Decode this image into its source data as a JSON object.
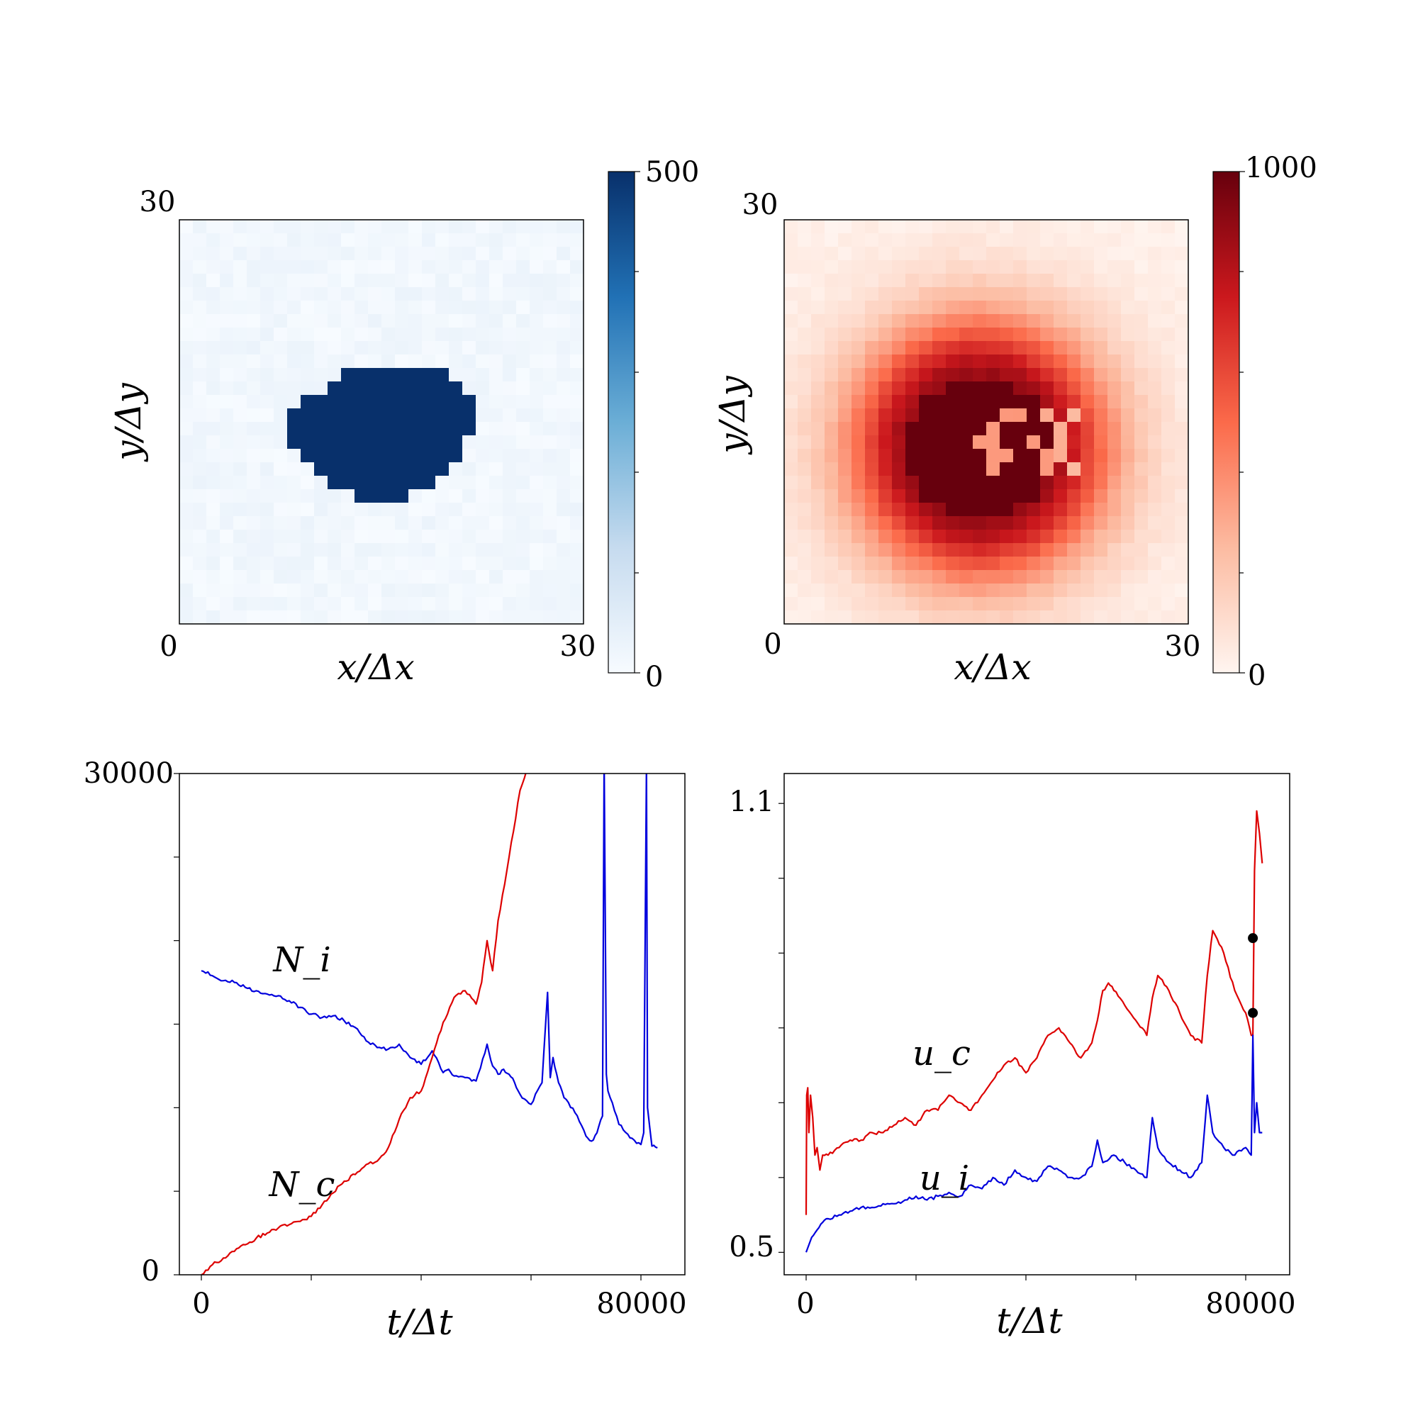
{
  "chart_data": [
    {
      "id": "heatmap_blue",
      "type": "heatmap",
      "xlabel": "x/Δx",
      "ylabel": "y/Δy",
      "xlim": [
        0,
        30
      ],
      "ylim": [
        0,
        30
      ],
      "xticklabels": [
        "0",
        "30"
      ],
      "yticklabels": [
        "30"
      ],
      "colormap": "Blues",
      "colorbar": {
        "range": [
          0,
          500
        ],
        "ticklabels": [
          "0",
          "500"
        ]
      },
      "grid_size": 30,
      "cells": [
        [
          12,
          11,
          500
        ],
        [
          13,
          11,
          500
        ],
        [
          14,
          11,
          500
        ],
        [
          15,
          11,
          500
        ],
        [
          16,
          11,
          500
        ],
        [
          17,
          11,
          500
        ],
        [
          18,
          11,
          500
        ],
        [
          19,
          11,
          500
        ],
        [
          11,
          12,
          500
        ],
        [
          12,
          12,
          500
        ],
        [
          13,
          12,
          500
        ],
        [
          14,
          12,
          500
        ],
        [
          15,
          12,
          500
        ],
        [
          16,
          12,
          500
        ],
        [
          17,
          12,
          500
        ],
        [
          18,
          12,
          500
        ],
        [
          19,
          12,
          500
        ],
        [
          20,
          12,
          500
        ],
        [
          9,
          13,
          500
        ],
        [
          10,
          13,
          500
        ],
        [
          11,
          13,
          500
        ],
        [
          12,
          13,
          500
        ],
        [
          13,
          13,
          500
        ],
        [
          14,
          13,
          500
        ],
        [
          15,
          13,
          500
        ],
        [
          16,
          13,
          500
        ],
        [
          17,
          13,
          500
        ],
        [
          18,
          13,
          500
        ],
        [
          19,
          13,
          500
        ],
        [
          20,
          13,
          500
        ],
        [
          21,
          13,
          500
        ],
        [
          8,
          14,
          500
        ],
        [
          9,
          14,
          500
        ],
        [
          10,
          14,
          500
        ],
        [
          11,
          14,
          500
        ],
        [
          12,
          14,
          500
        ],
        [
          13,
          14,
          500
        ],
        [
          14,
          14,
          500
        ],
        [
          15,
          14,
          500
        ],
        [
          16,
          14,
          500
        ],
        [
          17,
          14,
          500
        ],
        [
          18,
          14,
          500
        ],
        [
          19,
          14,
          500
        ],
        [
          20,
          14,
          500
        ],
        [
          21,
          14,
          500
        ],
        [
          8,
          15,
          500
        ],
        [
          9,
          15,
          500
        ],
        [
          10,
          15,
          500
        ],
        [
          11,
          15,
          500
        ],
        [
          12,
          15,
          500
        ],
        [
          13,
          15,
          500
        ],
        [
          14,
          15,
          500
        ],
        [
          15,
          15,
          500
        ],
        [
          16,
          15,
          500
        ],
        [
          17,
          15,
          500
        ],
        [
          18,
          15,
          500
        ],
        [
          19,
          15,
          500
        ],
        [
          20,
          15,
          500
        ],
        [
          21,
          15,
          500
        ],
        [
          8,
          16,
          500
        ],
        [
          9,
          16,
          500
        ],
        [
          10,
          16,
          500
        ],
        [
          11,
          16,
          500
        ],
        [
          12,
          16,
          500
        ],
        [
          13,
          16,
          500
        ],
        [
          14,
          16,
          500
        ],
        [
          15,
          16,
          500
        ],
        [
          16,
          16,
          500
        ],
        [
          17,
          16,
          500
        ],
        [
          18,
          16,
          500
        ],
        [
          19,
          16,
          500
        ],
        [
          20,
          16,
          500
        ],
        [
          9,
          17,
          500
        ],
        [
          10,
          17,
          500
        ],
        [
          11,
          17,
          500
        ],
        [
          12,
          17,
          500
        ],
        [
          13,
          17,
          500
        ],
        [
          14,
          17,
          500
        ],
        [
          15,
          17,
          500
        ],
        [
          16,
          17,
          500
        ],
        [
          17,
          17,
          500
        ],
        [
          18,
          17,
          500
        ],
        [
          19,
          17,
          500
        ],
        [
          20,
          17,
          500
        ],
        [
          10,
          18,
          500
        ],
        [
          11,
          18,
          500
        ],
        [
          12,
          18,
          500
        ],
        [
          13,
          18,
          500
        ],
        [
          14,
          18,
          500
        ],
        [
          15,
          18,
          500
        ],
        [
          16,
          18,
          500
        ],
        [
          17,
          18,
          500
        ],
        [
          18,
          18,
          500
        ],
        [
          19,
          18,
          500
        ],
        [
          11,
          19,
          500
        ],
        [
          12,
          19,
          500
        ],
        [
          13,
          19,
          500
        ],
        [
          14,
          19,
          500
        ],
        [
          15,
          19,
          500
        ],
        [
          16,
          19,
          500
        ],
        [
          17,
          19,
          500
        ],
        [
          18,
          19,
          500
        ],
        [
          13,
          20,
          500
        ],
        [
          14,
          20,
          500
        ],
        [
          15,
          20,
          500
        ],
        [
          16,
          20,
          500
        ]
      ]
    },
    {
      "id": "heatmap_red",
      "type": "heatmap",
      "xlabel": "x/Δx",
      "ylabel": "y/Δy",
      "xlim": [
        0,
        30
      ],
      "ylim": [
        0,
        30
      ],
      "xticklabels": [
        "0",
        "30"
      ],
      "yticklabels": [
        "30"
      ],
      "colormap": "Reds",
      "colorbar": {
        "range": [
          0,
          1000
        ],
        "ticklabels": [
          "0",
          "1000"
        ]
      },
      "grid_size": 30,
      "blob": {
        "center": [
          14.5,
          17
        ],
        "core_radius": 5.4,
        "falloff": 5.0,
        "peak": 1000
      }
    },
    {
      "id": "counts",
      "type": "line",
      "xlabel": "t/Δt",
      "ylabel": "",
      "xlim": [
        -4000,
        88000
      ],
      "ylim": [
        0,
        30000
      ],
      "xticklabels": [
        "0",
        "80000"
      ],
      "yticklabels": [
        "0",
        "30000"
      ],
      "series": [
        {
          "name": "N_i",
          "color": "#0000dd",
          "x": [
            0,
            2000,
            4000,
            6000,
            8000,
            10000,
            12000,
            14000,
            16000,
            18000,
            20000,
            22000,
            24000,
            26000,
            28000,
            30000,
            32000,
            34000,
            36000,
            38000,
            40000,
            42000,
            44000,
            45000,
            46000,
            48000,
            50000,
            52000,
            53000,
            54000,
            55000,
            56000,
            57000,
            58000,
            60000,
            62000,
            63000,
            63500,
            64000,
            65000,
            66000,
            68000,
            70000,
            71000,
            72000,
            73000,
            73300,
            73700,
            74000,
            76000,
            78000,
            80000,
            80500,
            81000,
            81200,
            82000,
            83000
          ],
          "y": [
            18200,
            17900,
            17600,
            17500,
            17200,
            17000,
            16800,
            16700,
            16400,
            16000,
            15600,
            15400,
            15500,
            15200,
            14800,
            14000,
            13600,
            13500,
            13800,
            13000,
            12600,
            13400,
            12100,
            12300,
            11900,
            11800,
            11600,
            13800,
            12500,
            12000,
            12300,
            12000,
            11500,
            10800,
            10200,
            11500,
            16900,
            11800,
            13000,
            11500,
            10600,
            9700,
            8300,
            8000,
            8500,
            9500,
            31000,
            12000,
            11000,
            9000,
            8200,
            7800,
            8500,
            30500,
            10000,
            7700,
            7600
          ]
        },
        {
          "name": "N_c",
          "color": "#dd0000",
          "x": [
            0,
            2000,
            4000,
            6000,
            8000,
            10000,
            12000,
            14000,
            16000,
            18000,
            20000,
            22000,
            24000,
            26000,
            28000,
            30000,
            32000,
            34000,
            36000,
            38000,
            40000,
            42000,
            44000,
            46000,
            48000,
            50000,
            51000,
            52000,
            53000,
            54000,
            56000,
            58000,
            60000
          ],
          "y": [
            0,
            600,
            1000,
            1400,
            1800,
            2200,
            2500,
            2800,
            3000,
            3200,
            3500,
            4200,
            4900,
            5600,
            6000,
            6600,
            6800,
            7600,
            9300,
            10600,
            11000,
            13000,
            15100,
            16600,
            17000,
            16200,
            17500,
            20000,
            18200,
            21200,
            25000,
            29000,
            31000
          ]
        }
      ],
      "annotations": [
        {
          "text": "N_i",
          "x": 18000,
          "y": 18400
        },
        {
          "text": "N_c",
          "x": 18000,
          "y": 4600
        }
      ]
    },
    {
      "id": "means",
      "type": "line",
      "xlabel": "t/Δt",
      "ylabel": "",
      "xlim": [
        -4000,
        88000
      ],
      "ylim": [
        0.47,
        1.14
      ],
      "xticklabels": [
        "0",
        "80000"
      ],
      "yticklabels": [
        "0.5",
        "1.1"
      ],
      "series": [
        {
          "name": "u_c",
          "color": "#dd0000",
          "x": [
            0,
            100,
            300,
            500,
            800,
            1200,
            1600,
            2000,
            2500,
            3000,
            4000,
            6000,
            8000,
            10000,
            12000,
            14000,
            16000,
            18000,
            20000,
            22000,
            24000,
            26000,
            28000,
            30000,
            32000,
            34000,
            36000,
            38000,
            40000,
            42000,
            44000,
            46000,
            48000,
            50000,
            52000,
            53000,
            54000,
            55000,
            56000,
            58000,
            60000,
            62000,
            63000,
            64000,
            66000,
            68000,
            70000,
            72000,
            73000,
            74000,
            76000,
            78000,
            80000,
            81000,
            81300,
            81600,
            82000,
            82500,
            83000
          ],
          "y": [
            0.55,
            0.71,
            0.72,
            0.66,
            0.71,
            0.68,
            0.63,
            0.64,
            0.61,
            0.63,
            0.63,
            0.64,
            0.65,
            0.65,
            0.66,
            0.66,
            0.67,
            0.68,
            0.67,
            0.69,
            0.69,
            0.71,
            0.7,
            0.69,
            0.71,
            0.73,
            0.75,
            0.76,
            0.74,
            0.76,
            0.79,
            0.8,
            0.78,
            0.76,
            0.78,
            0.81,
            0.85,
            0.86,
            0.85,
            0.83,
            0.81,
            0.79,
            0.84,
            0.87,
            0.85,
            0.82,
            0.79,
            0.78,
            0.87,
            0.93,
            0.9,
            0.85,
            0.82,
            0.79,
            0.79,
            1.01,
            1.09,
            1.06,
            1.02
          ]
        },
        {
          "name": "u_i",
          "color": "#0000dd",
          "x": [
            0,
            500,
            1000,
            2000,
            3000,
            4000,
            6000,
            8000,
            10000,
            12000,
            14000,
            16000,
            18000,
            20000,
            22000,
            24000,
            26000,
            28000,
            30000,
            32000,
            34000,
            36000,
            38000,
            40000,
            42000,
            44000,
            46000,
            48000,
            50000,
            52000,
            53000,
            54000,
            56000,
            58000,
            60000,
            62000,
            63000,
            64000,
            66000,
            68000,
            70000,
            72000,
            73000,
            74000,
            76000,
            78000,
            80000,
            81000,
            81300,
            81600,
            82000,
            82500,
            83000
          ],
          "y": [
            0.5,
            0.51,
            0.52,
            0.53,
            0.54,
            0.545,
            0.55,
            0.555,
            0.56,
            0.56,
            0.565,
            0.565,
            0.57,
            0.575,
            0.57,
            0.575,
            0.58,
            0.575,
            0.59,
            0.585,
            0.6,
            0.59,
            0.61,
            0.6,
            0.595,
            0.615,
            0.61,
            0.6,
            0.6,
            0.615,
            0.65,
            0.62,
            0.63,
            0.62,
            0.61,
            0.6,
            0.68,
            0.64,
            0.62,
            0.61,
            0.6,
            0.62,
            0.71,
            0.66,
            0.64,
            0.63,
            0.64,
            0.63,
            0.79,
            0.66,
            0.7,
            0.66,
            0.66
          ]
        }
      ],
      "markers": [
        {
          "x": 81300,
          "y": 0.92
        },
        {
          "x": 81300,
          "y": 0.82
        }
      ],
      "annotations": [
        {
          "text": "u_c",
          "x": 24000,
          "y": 0.75
        },
        {
          "text": "u_i",
          "x": 24000,
          "y": 0.6
        }
      ]
    }
  ]
}
